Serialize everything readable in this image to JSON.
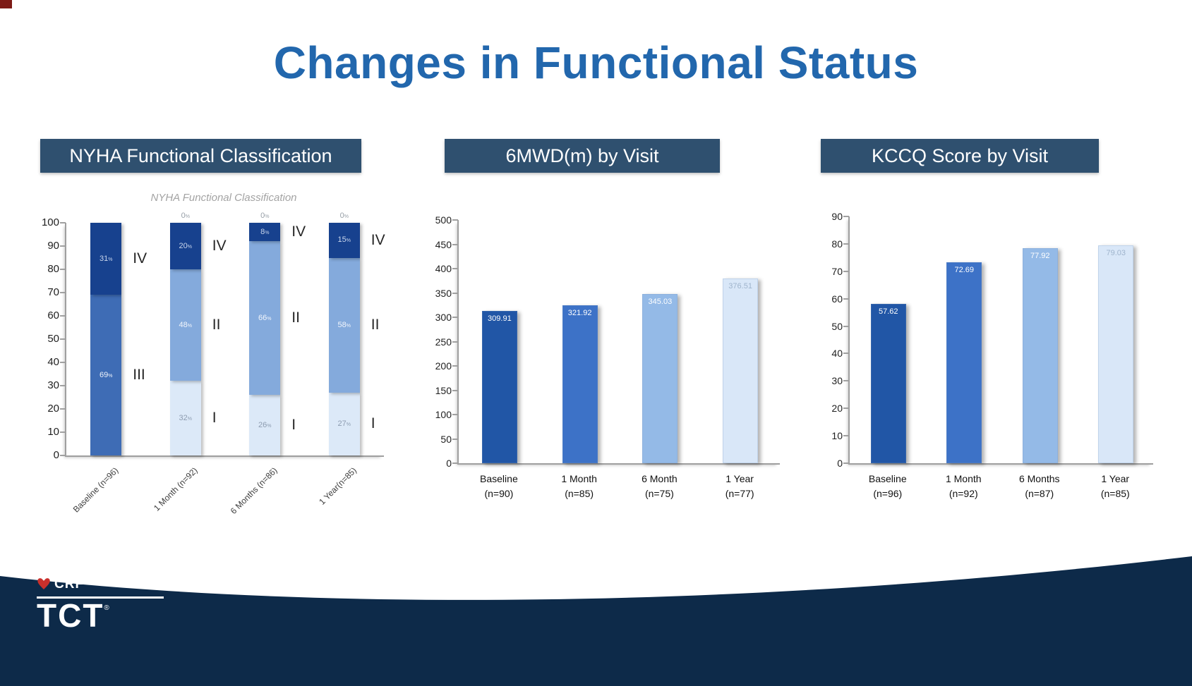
{
  "slide": {
    "title": "Changes in Functional Status"
  },
  "section_headers": {
    "nyha": "NYHA Functional Classification",
    "mwd": "6MWD(m) by Visit",
    "kccq": "KCCQ Score by Visit"
  },
  "footer": {
    "crf": "CRF",
    "tct": "TCT",
    "reg": "®"
  },
  "chart_data": [
    {
      "type": "stacked-bar",
      "title": "NYHA Functional Classification",
      "ylim": [
        0,
        100
      ],
      "y_step": 10,
      "unit": "%",
      "grid": false,
      "legend_position": "none",
      "class_colors": {
        "I": "#dce9f8",
        "II": "#84aadc",
        "III": "#3e6cb5",
        "IV": "#17418e"
      },
      "value_label_colors": {
        "I": "#8d9cb0",
        "II": "#f2f6fc",
        "III": "#eef3fb",
        "IV": "#c9d6ec"
      },
      "bars": [
        {
          "category": "Baseline (n=96)",
          "segments": [
            {
              "cls": "I",
              "value": 0
            },
            {
              "cls": "III",
              "value": 69
            },
            {
              "cls": "IV",
              "value": 31
            }
          ]
        },
        {
          "category": "1 Month (n=92)",
          "segments": [
            {
              "cls": "I",
              "value": 32
            },
            {
              "cls": "II",
              "value": 48
            },
            {
              "cls": "IV",
              "value": 20
            },
            {
              "cls": "III",
              "value": 0
            }
          ]
        },
        {
          "category": "6 Months (n=86)",
          "segments": [
            {
              "cls": "I",
              "value": 26
            },
            {
              "cls": "II",
              "value": 66
            },
            {
              "cls": "IV",
              "value": 8
            },
            {
              "cls": "III",
              "value": 0
            }
          ]
        },
        {
          "category": "1 Year(n=85)",
          "segments": [
            {
              "cls": "I",
              "value": 27
            },
            {
              "cls": "II",
              "value": 58
            },
            {
              "cls": "IV",
              "value": 15
            },
            {
              "cls": "III",
              "value": 0
            }
          ]
        }
      ]
    },
    {
      "type": "bar",
      "title": "6MWD(m) by Visit",
      "ylim": [
        0,
        500
      ],
      "y_step": 50,
      "grid": false,
      "categories": [
        {
          "label": "Baseline",
          "n": "(n=90)"
        },
        {
          "label": "1 Month",
          "n": "(n=85)"
        },
        {
          "label": "6 Month",
          "n": "(n=75)"
        },
        {
          "label": "1 Year",
          "n": "(n=77)"
        }
      ],
      "values": [
        309.91,
        321.92,
        345.03,
        376.51
      ],
      "bar_colors": [
        "#2156a6",
        "#3d72c7",
        "#94bae7",
        "#d9e7f8"
      ],
      "value_label_colors": [
        "#ffffff",
        "#ffffff",
        "#ffffff",
        "#9fb4cc"
      ]
    },
    {
      "type": "bar",
      "title": "KCCQ Score by Visit",
      "ylim": [
        0,
        90
      ],
      "y_step": 10,
      "grid": false,
      "categories": [
        {
          "label": "Baseline",
          "n": "(n=96)"
        },
        {
          "label": "1 Month",
          "n": "(n=92)"
        },
        {
          "label": "6 Months",
          "n": "(n=87)"
        },
        {
          "label": "1 Year",
          "n": "(n=85)"
        }
      ],
      "values": [
        57.62,
        72.69,
        77.92,
        79.03
      ],
      "bar_colors": [
        "#2156a6",
        "#3d72c7",
        "#94bae7",
        "#d9e7f8"
      ],
      "value_label_colors": [
        "#ffffff",
        "#ffffff",
        "#ffffff",
        "#9fb4cc"
      ]
    }
  ]
}
